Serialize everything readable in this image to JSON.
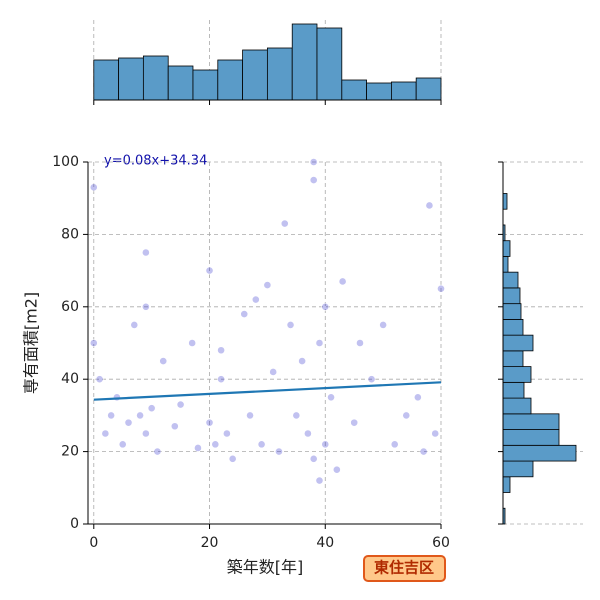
{
  "chart_data": [
    {
      "type": "scatter",
      "xlabel": "築年数[年]",
      "ylabel": "専有面積[m2]",
      "annotation": "y=0.08x+34.34",
      "xlim": [
        -1,
        60
      ],
      "ylim": [
        0,
        100
      ],
      "xticks": [
        0,
        20,
        40,
        60
      ],
      "yticks": [
        0,
        20,
        40,
        60,
        80,
        100
      ],
      "grid": true,
      "color": "#3333cc",
      "line_color": "#1f77b4",
      "slope": 0.08,
      "intercept": 34.34,
      "x": [
        0,
        0,
        1,
        2,
        3,
        4,
        5,
        6,
        7,
        8,
        9,
        9,
        10,
        11,
        12,
        14,
        15,
        17,
        18,
        20,
        20,
        21,
        22,
        23,
        24,
        26,
        27,
        28,
        29,
        30,
        31,
        32,
        33,
        34,
        35,
        36,
        37,
        38,
        38,
        39,
        39,
        40,
        40,
        41,
        42,
        43,
        45,
        46,
        48,
        50,
        52,
        54,
        56,
        57,
        58,
        59,
        60,
        9,
        22,
        38
      ],
      "y": [
        93,
        50,
        40,
        25,
        30,
        35,
        22,
        28,
        55,
        30,
        75,
        25,
        32,
        20,
        45,
        27,
        33,
        50,
        21,
        28,
        70,
        22,
        48,
        25,
        18,
        58,
        30,
        62,
        22,
        66,
        42,
        20,
        83,
        55,
        30,
        45,
        25,
        18,
        95,
        50,
        12,
        60,
        22,
        35,
        15,
        67,
        28,
        50,
        40,
        55,
        22,
        30,
        35,
        20,
        88,
        25,
        65,
        60,
        40,
        100
      ]
    },
    {
      "type": "histogram",
      "orientation": "vertical",
      "color": "#5a9bc8",
      "xlim": [
        -1,
        60
      ],
      "ylim": [
        0,
        80
      ],
      "xticks": [
        0,
        20,
        40,
        60
      ],
      "grid": true,
      "bins": [
        0,
        4.29,
        8.57,
        12.86,
        17.14,
        21.43,
        25.71,
        30,
        34.29,
        38.57,
        42.86,
        47.14,
        51.43,
        55.71,
        60
      ],
      "values": [
        40,
        42,
        44,
        34,
        30,
        40,
        50,
        52,
        76,
        72,
        20,
        17,
        18,
        22
      ]
    },
    {
      "type": "histogram",
      "orientation": "horizontal",
      "color": "#5a9bc8",
      "ylim": [
        0,
        100
      ],
      "xlim": [
        0,
        80
      ],
      "yticks": [
        0,
        20,
        40,
        60,
        80,
        100
      ],
      "grid": true,
      "bins": [
        0,
        4.35,
        8.7,
        13.04,
        17.39,
        21.74,
        26.09,
        30.43,
        34.78,
        39.13,
        43.48,
        47.83,
        52.17,
        56.52,
        60.87,
        65.22,
        69.57,
        73.91,
        78.26,
        82.61,
        86.96,
        91.3,
        95.65,
        100
      ],
      "values": [
        2,
        0,
        7,
        30,
        73,
        56,
        56,
        28,
        21,
        28,
        20,
        30,
        20,
        18,
        17,
        15,
        5,
        7,
        2,
        0,
        4,
        0,
        0
      ]
    }
  ],
  "badge": "東住吉区"
}
